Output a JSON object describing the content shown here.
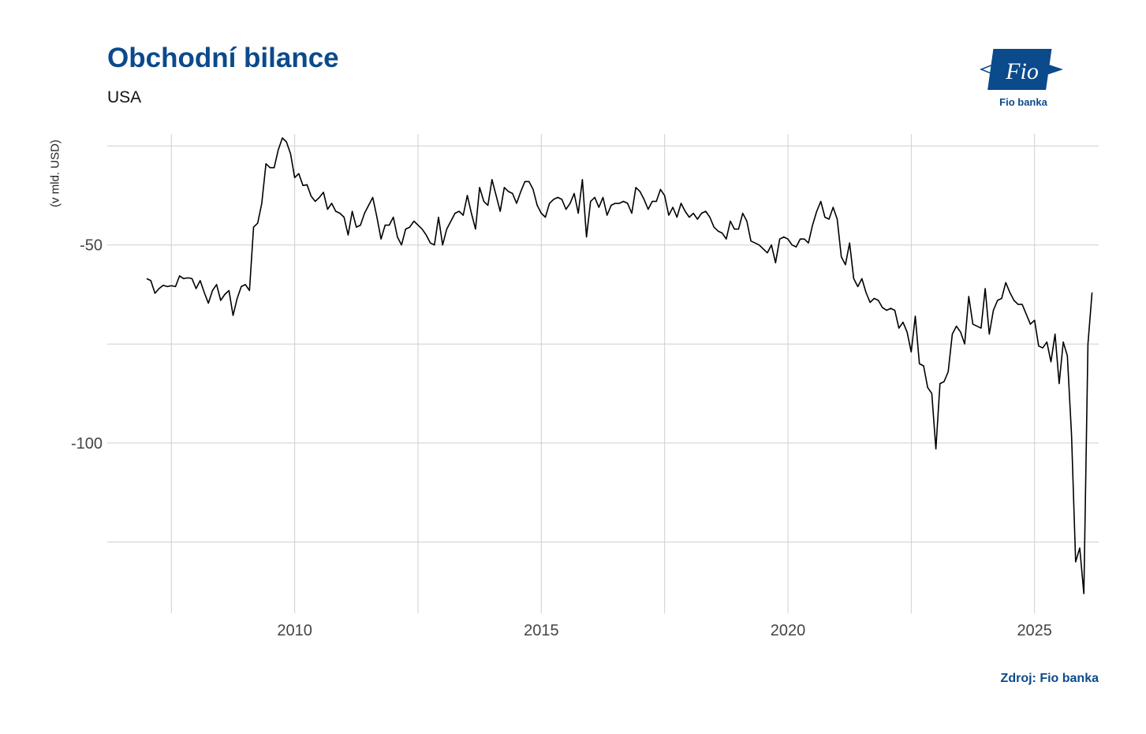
{
  "header": {
    "title": "Obchodní bilance",
    "subtitle": "USA"
  },
  "brand": {
    "logo_mark": "Fio",
    "logo_caption": "Fio banka",
    "color": "#0b4a8b"
  },
  "footer": {
    "source": "Zdroj: Fio banka"
  },
  "chart_data": {
    "type": "line",
    "title": "Obchodní bilance",
    "subtitle": "USA",
    "xlabel": "",
    "ylabel": "(v mld. USD)",
    "xlim": [
      2006.2,
      2026.3
    ],
    "ylim": [
      -143,
      -22
    ],
    "x_ticks": [
      2010,
      2015,
      2020,
      2025
    ],
    "x_tick_labels": [
      "2010",
      "2015",
      "2020",
      "2025"
    ],
    "y_ticks": [
      -50,
      -100
    ],
    "y_tick_labels": [
      "-50",
      "-100"
    ],
    "grid": true,
    "line_color": "#000000",
    "series": [
      {
        "x_start": 2007.0,
        "x_step": 0.08333,
        "values": [
          -58.5,
          -59,
          -62.2,
          -61,
          -60.2,
          -60.5,
          -60.3,
          -60.5,
          -57.8,
          -58.5,
          -58.3,
          -58.5,
          -61,
          -59,
          -62,
          -64.7,
          -61.5,
          -60,
          -64,
          -62.5,
          -61.5,
          -67.8,
          -63.5,
          -60.5,
          -60,
          -61.5,
          -45.5,
          -44.5,
          -39.5,
          -29.5,
          -30.5,
          -30.5,
          -26,
          -23,
          -24,
          -27,
          -33,
          -32,
          -35,
          -34.8,
          -37.7,
          -39,
          -38,
          -36.7,
          -41,
          -39.5,
          -41.5,
          -42,
          -43,
          -47.5,
          -41.5,
          -45.5,
          -45,
          -42,
          -40,
          -38,
          -43,
          -48.5,
          -45,
          -45,
          -43,
          -48,
          -50,
          -46,
          -45.5,
          -44,
          -45,
          -46,
          -47.5,
          -49.5,
          -50,
          -43,
          -50,
          -46,
          -44,
          -42,
          -41.5,
          -42.5,
          -37.5,
          -42,
          -46,
          -35.5,
          -39,
          -40,
          -33.5,
          -37.5,
          -41.5,
          -35.5,
          -36.5,
          -37,
          -39.5,
          -36.5,
          -34,
          -34,
          -36,
          -40,
          -42,
          -43,
          -39.5,
          -38.5,
          -38,
          -38.5,
          -41,
          -39.5,
          -37,
          -42,
          -33.5,
          -48,
          -39,
          -38,
          -40.5,
          -38,
          -42.5,
          -40,
          -39.5,
          -39.5,
          -39,
          -39.5,
          -42,
          -35.5,
          -36.5,
          -38.5,
          -41,
          -39,
          -39,
          -36,
          -37.5,
          -42.5,
          -40.5,
          -43,
          -39.5,
          -41.5,
          -43,
          -42,
          -43.5,
          -42,
          -41.5,
          -43,
          -45.5,
          -46.5,
          -47,
          -48.5,
          -44,
          -46,
          -46,
          -42,
          -44,
          -49,
          -49.5,
          -50,
          -51,
          -52,
          -50,
          -54.5,
          -48.5,
          -48,
          -48.5,
          -50,
          -50.5,
          -48.5,
          -48.5,
          -49.5,
          -45,
          -41.5,
          -39,
          -43,
          -43.5,
          -40.5,
          -43.5,
          -53,
          -55,
          -49.5,
          -58.5,
          -60.5,
          -58.5,
          -62,
          -64.5,
          -63.5,
          -64,
          -65.8,
          -66.5,
          -66,
          -66.5,
          -71,
          -69.5,
          -72,
          -77,
          -68,
          -80,
          -80.5,
          -86,
          -87.5,
          -101.5,
          -85,
          -84.5,
          -82,
          -72.5,
          -70.5,
          -72,
          -75,
          -63,
          -70,
          -70.5,
          -71,
          -61,
          -72.5,
          -66.5,
          -64,
          -63.5,
          -59.5,
          -62,
          -64,
          -65,
          -65,
          -67.5,
          -70,
          -69,
          -75.5,
          -76,
          -74.5,
          -79.5,
          -72.5,
          -85,
          -74.5,
          -78,
          -98,
          -130,
          -126.5,
          -138,
          -75,
          -62
        ]
      }
    ]
  }
}
